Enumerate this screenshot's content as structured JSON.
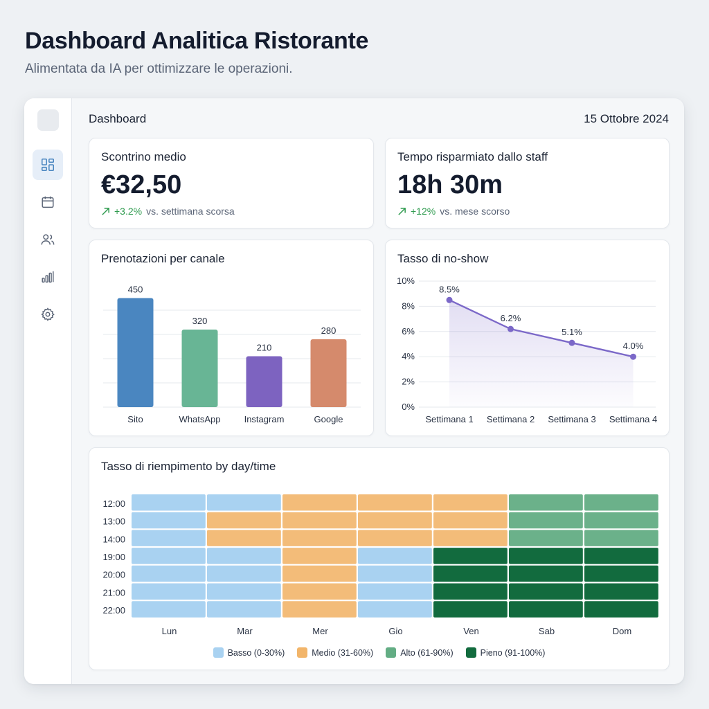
{
  "page": {
    "title": "Dashboard Analitica Ristorante",
    "subtitle": "Alimentata da IA per ottimizzare le operazioni."
  },
  "sidebar": {
    "items": [
      {
        "name": "dashboard",
        "icon": "dashboard-icon",
        "active": true
      },
      {
        "name": "calendar",
        "icon": "calendar-icon",
        "active": false
      },
      {
        "name": "users",
        "icon": "users-icon",
        "active": false
      },
      {
        "name": "analytics",
        "icon": "bar-chart-icon",
        "active": false
      },
      {
        "name": "settings",
        "icon": "gear-icon",
        "active": false
      }
    ]
  },
  "header": {
    "title": "Dashboard",
    "date": "15 Ottobre 2024"
  },
  "kpis": {
    "avg_ticket": {
      "title": "Scontrino medio",
      "value": "€32,50",
      "change": "+3.2%",
      "comparison": "vs. settimana scorsa"
    },
    "staff_time": {
      "title": "Tempo risparmiato dallo staff",
      "value": "18h 30m",
      "change": "+12%",
      "comparison": "vs. mese scorso"
    }
  },
  "colors": {
    "accent": "#4a86c0",
    "positive": "#2f9b4f",
    "line": "#7b68c8"
  },
  "chart_data": [
    {
      "type": "bar",
      "title": "Prenotazioni per canale",
      "categories": [
        "Sito",
        "WhatsApp",
        "Instagram",
        "Google"
      ],
      "values": [
        450,
        320,
        210,
        280
      ],
      "colors": [
        "#4a86c0",
        "#68b595",
        "#7d63c0",
        "#d58a6c"
      ],
      "ylim": [
        0,
        500
      ],
      "grid": true
    },
    {
      "type": "line",
      "title": "Tasso di no-show",
      "categories": [
        "Settimana 1",
        "Settimana 2",
        "Settimana 3",
        "Settimana 4"
      ],
      "values": [
        8.5,
        6.2,
        5.1,
        4.0
      ],
      "labels": [
        "8.5%",
        "6.2%",
        "5.1%",
        "4.0%"
      ],
      "yticks": [
        "0%",
        "2%",
        "4%",
        "6%",
        "8%",
        "10%"
      ],
      "ylim": [
        0,
        10
      ],
      "grid": true,
      "color": "#7b68c8"
    },
    {
      "type": "heatmap",
      "title": "Tasso di riempimento by day/time",
      "rows": [
        "12:00",
        "13:00",
        "14:00",
        "19:00",
        "20:00",
        "21:00",
        "22:00"
      ],
      "columns": [
        "Lun",
        "Mar",
        "Mer",
        "Gio",
        "Ven",
        "Sab",
        "Dom"
      ],
      "levels": [
        [
          "basso",
          "basso",
          "medio",
          "medio",
          "medio",
          "alto",
          "alto"
        ],
        [
          "basso",
          "medio",
          "medio",
          "medio",
          "medio",
          "alto",
          "alto"
        ],
        [
          "basso",
          "medio",
          "medio",
          "medio",
          "medio",
          "alto",
          "alto"
        ],
        [
          "basso",
          "basso",
          "medio",
          "basso",
          "pieno",
          "pieno",
          "pieno"
        ],
        [
          "basso",
          "basso",
          "medio",
          "basso",
          "pieno",
          "pieno",
          "pieno"
        ],
        [
          "basso",
          "basso",
          "medio",
          "basso",
          "pieno",
          "pieno",
          "pieno"
        ],
        [
          "basso",
          "basso",
          "medio",
          "basso",
          "pieno",
          "pieno",
          "pieno"
        ]
      ],
      "legend": [
        {
          "key": "basso",
          "label": "Basso (0-30%)",
          "color": "#a9d2f1"
        },
        {
          "key": "medio",
          "label": "Medio (31-60%)",
          "color": "#f2b56a"
        },
        {
          "key": "alto",
          "label": "Alto (61-90%)",
          "color": "#63ad84"
        },
        {
          "key": "pieno",
          "label": "Pieno (91-100%)",
          "color": "#126b3e"
        }
      ]
    }
  ]
}
